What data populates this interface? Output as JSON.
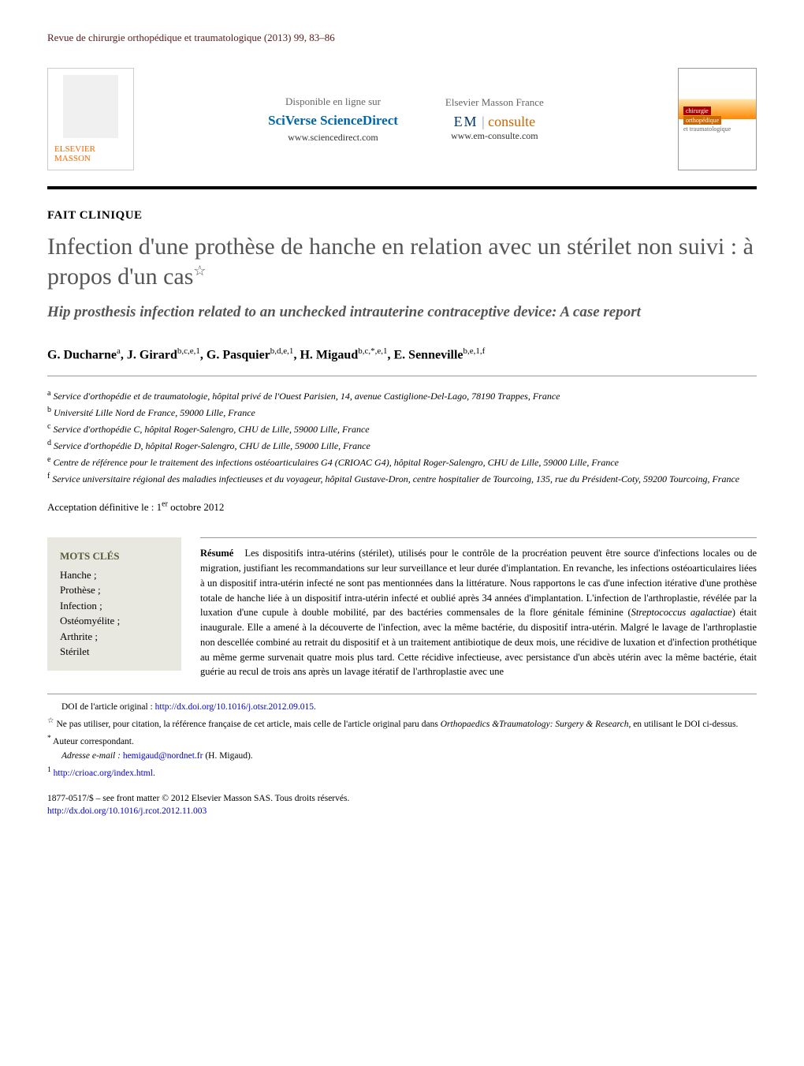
{
  "journal_header": "Revue de chirurgie orthopédique et traumatologique (2013) 99, 83–86",
  "banner": {
    "publisher_logo": "ELSEVIER MASSON",
    "left": {
      "label": "Disponible en ligne sur",
      "brand": "SciVerse ScienceDirect",
      "url": "www.sciencedirect.com"
    },
    "right": {
      "label": "Elsevier Masson France",
      "brand_em": "EM",
      "brand_consulte": "consulte",
      "url": "www.em-consulte.com"
    },
    "cover": {
      "line1": "chirurgie",
      "line2": "orthopédique",
      "line3": "et traumatologique"
    }
  },
  "article_type": "FAIT CLINIQUE",
  "title_fr": "Infection d'une prothèse de hanche en relation avec un stérilet non suivi : à propos d'un cas",
  "title_star": "☆",
  "title_en": "Hip prosthesis infection related to an unchecked intrauterine contraceptive device: A case report",
  "authors_html": "G. Ducharne<sup>a</sup>, J. Girard<sup>b,c,e,1</sup>, G. Pasquier<sup>b,d,e,1</sup>, H. Migaud<sup>b,c,*,e,1</sup>, E. Senneville<sup>b,e,1,f</sup>",
  "affiliations": [
    {
      "sup": "a",
      "text": "Service d'orthopédie et de traumatologie, hôpital privé de l'Ouest Parisien, 14, avenue Castiglione-Del-Lago, 78190 Trappes, France"
    },
    {
      "sup": "b",
      "text": "Université Lille Nord de France, 59000 Lille, France"
    },
    {
      "sup": "c",
      "text": "Service d'orthopédie C, hôpital Roger-Salengro, CHU de Lille, 59000 Lille, France"
    },
    {
      "sup": "d",
      "text": "Service d'orthopédie D, hôpital Roger-Salengro, CHU de Lille, 59000 Lille, France"
    },
    {
      "sup": "e",
      "text": "Centre de référence pour le traitement des infections ostéoarticulaires G4 (CRIOAC G4), hôpital Roger-Salengro, CHU de Lille, 59000 Lille, France"
    },
    {
      "sup": "f",
      "text": "Service universitaire régional des maladies infectieuses et du voyageur, hôpital Gustave-Dron, centre hospitalier de Tourcoing, 135, rue du Président-Coty, 59200 Tourcoing, France"
    }
  ],
  "acceptance": "Acceptation définitive le : 1er octobre 2012",
  "keywords": {
    "title": "MOTS CLÉS",
    "items": [
      "Hanche ;",
      "Prothèse ;",
      "Infection ;",
      "Ostéomyélite ;",
      "Arthrite ;",
      "Stérilet"
    ]
  },
  "abstract": {
    "lead": "Résumé",
    "body": "Les dispositifs intra-utérins (stérilet), utilisés pour le contrôle de la procréation peuvent être source d'infections locales ou de migration, justifiant les recommandations sur leur surveillance et leur durée d'implantation. En revanche, les infections ostéoarticulaires liées à un dispositif intra-utérin infecté ne sont pas mentionnées dans la littérature. Nous rapportons le cas d'une infection itérative d'une prothèse totale de hanche liée à un dispositif intra-utérin infecté et oublié après 34 années d'implantation. L'infection de l'arthroplastie, révélée par la luxation d'une cupule à double mobilité, par des bactéries commensales de la flore génitale féminine (Streptococcus agalactiae) était inaugurale. Elle a amené à la découverte de l'infection, avec la même bactérie, du dispositif intra-utérin. Malgré le lavage de l'arthroplastie non descellée combiné au retrait du dispositif et à un traitement antibiotique de deux mois, une récidive de luxation et d'infection prothétique au même germe survenait quatre mois plus tard. Cette récidive infectieuse, avec persistance d'un abcès utérin avec la même bactérie, était guérie au recul de trois ans après un lavage itératif de l'arthroplastie avec une"
  },
  "footnotes": {
    "doi_label": "DOI de l'article original : ",
    "doi_link": "http://dx.doi.org/10.1016/j.otsr.2012.09.015",
    "star_note": "Ne pas utiliser, pour citation, la référence française de cet article, mais celle de l'article original paru dans Orthopaedics &Traumatology: Surgery & Research, en utilisant le DOI ci-dessus.",
    "corresp": "Auteur correspondant.",
    "email_label": "Adresse e-mail : ",
    "email": "hemigaud@nordnet.fr",
    "email_name": " (H. Migaud).",
    "ref1": "http://crioac.org/index.html"
  },
  "copyright": {
    "line1": "1877-0517/$ – see front matter © 2012 Elsevier Masson SAS. Tous droits réservés.",
    "doi": "http://dx.doi.org/10.1016/j.rcot.2012.11.003"
  },
  "colors": {
    "header_text": "#5a1a1a",
    "title_grey": "#555555",
    "link": "#0000cc",
    "kw_bg": "#e8e8e0",
    "kw_title": "#5a5a3a",
    "orange": "#ff6600"
  }
}
